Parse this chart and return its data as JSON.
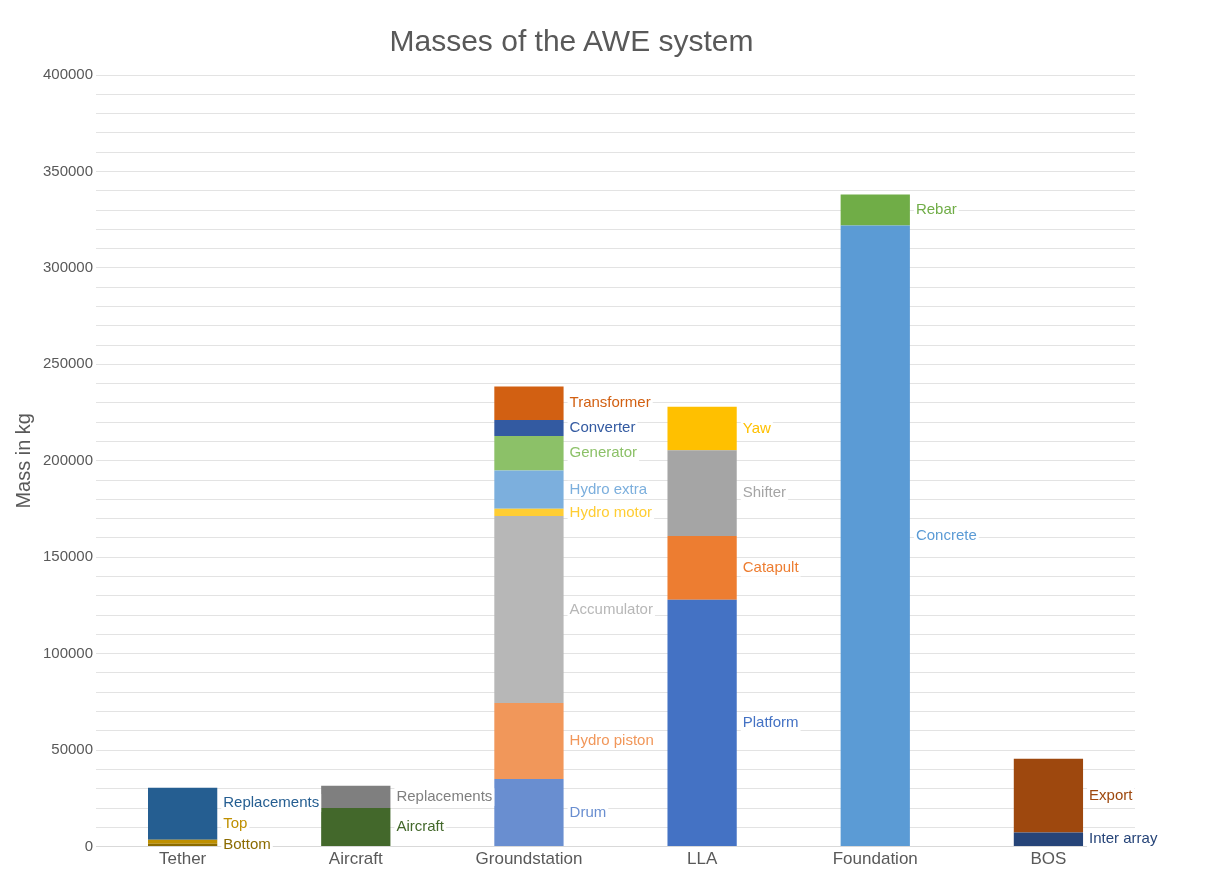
{
  "chart_data": {
    "type": "bar",
    "title": "Masses of the AWE system",
    "ylabel": "Mass in kg",
    "stacked": true,
    "legend": false,
    "grid": "y",
    "categories": [
      "Tether",
      "Aircraft",
      "Groundstation",
      "LLA",
      "Foundation",
      "BOS"
    ],
    "ylim": [
      0,
      400000
    ],
    "yticks": [
      0,
      {
        "value": 10000,
        "label": null
      },
      {
        "value": 20000,
        "label": null
      },
      {
        "value": 30000,
        "label": null
      },
      {
        "value": 40000,
        "label": null
      },
      50000,
      {
        "value": 60000,
        "label": null
      },
      {
        "value": 70000,
        "label": null
      },
      {
        "value": 80000,
        "label": null
      },
      {
        "value": 90000,
        "label": null
      },
      100000,
      {
        "value": 110000,
        "label": null
      },
      {
        "value": 120000,
        "label": null
      },
      {
        "value": 130000,
        "label": null
      },
      {
        "value": 140000,
        "label": null
      },
      150000,
      {
        "value": 160000,
        "label": null
      },
      {
        "value": 170000,
        "label": null
      },
      {
        "value": 180000,
        "label": null
      },
      {
        "value": 190000,
        "label": null
      },
      200000,
      {
        "value": 210000,
        "label": null
      },
      {
        "value": 220000,
        "label": null
      },
      {
        "value": 230000,
        "label": null
      },
      {
        "value": 240000,
        "label": null
      },
      250000,
      {
        "value": 260000,
        "label": null
      },
      {
        "value": 270000,
        "label": null
      },
      {
        "value": 280000,
        "label": null
      },
      {
        "value": 290000,
        "label": null
      },
      300000,
      {
        "value": 310000,
        "label": null
      },
      {
        "value": 320000,
        "label": null
      },
      {
        "value": 330000,
        "label": null
      },
      {
        "value": 340000,
        "label": null
      },
      350000,
      {
        "value": 360000,
        "label": null
      },
      {
        "value": 370000,
        "label": null
      },
      {
        "value": 380000,
        "label": null
      },
      {
        "value": 390000,
        "label": null
      },
      400000
    ],
    "series": [
      {
        "name": "Bottom",
        "color": "#8b6b00",
        "values": [
          1500,
          null,
          null,
          null,
          null,
          null
        ]
      },
      {
        "name": "Top",
        "color": "#bf9000",
        "values": [
          2000,
          null,
          null,
          null,
          null,
          null
        ]
      },
      {
        "name": "Replacements",
        "color": "#255e91",
        "values": [
          27000,
          null,
          null,
          null,
          null,
          null
        ]
      },
      {
        "name": "Aircraft",
        "color": "#43682b",
        "values": [
          null,
          20000,
          null,
          null,
          null,
          null
        ]
      },
      {
        "name": "Replacements",
        "color": "#7f7f7f",
        "values": [
          null,
          11500,
          null,
          null,
          null,
          null
        ]
      },
      {
        "name": "Drum",
        "color": "#698ed0",
        "values": [
          null,
          null,
          35000,
          null,
          null,
          null
        ]
      },
      {
        "name": "Hydro piston",
        "color": "#f1975a",
        "values": [
          null,
          null,
          39400,
          null,
          null,
          null
        ]
      },
      {
        "name": "Accumulator",
        "color": "#b7b7b7",
        "values": [
          null,
          null,
          97000,
          null,
          null,
          null
        ]
      },
      {
        "name": "Hydro motor",
        "color": "#ffcd33",
        "values": [
          null,
          null,
          3700,
          null,
          null,
          null
        ]
      },
      {
        "name": "Hydro extra",
        "color": "#7cafdd",
        "values": [
          null,
          null,
          19900,
          null,
          null,
          null
        ]
      },
      {
        "name": "Generator",
        "color": "#8cc168",
        "values": [
          null,
          null,
          17800,
          null,
          null,
          null
        ]
      },
      {
        "name": "Converter",
        "color": "#335aa1",
        "values": [
          null,
          null,
          8400,
          null,
          null,
          null
        ]
      },
      {
        "name": "Transformer",
        "color": "#d26012",
        "values": [
          null,
          null,
          17300,
          null,
          null,
          null
        ]
      },
      {
        "name": "Platform",
        "color": "#4472c4",
        "values": [
          null,
          null,
          null,
          128000,
          null,
          null
        ]
      },
      {
        "name": "Catapult",
        "color": "#ed7d31",
        "values": [
          null,
          null,
          null,
          33000,
          null,
          null
        ]
      },
      {
        "name": "Shifter",
        "color": "#a5a5a5",
        "values": [
          null,
          null,
          null,
          44500,
          null,
          null
        ]
      },
      {
        "name": "Yaw",
        "color": "#ffc000",
        "values": [
          null,
          null,
          null,
          22500,
          null,
          null
        ]
      },
      {
        "name": "Concrete",
        "color": "#5b9bd5",
        "values": [
          null,
          null,
          null,
          null,
          322000,
          null
        ]
      },
      {
        "name": "Rebar",
        "color": "#70ad47",
        "values": [
          null,
          null,
          null,
          null,
          16000,
          null
        ]
      },
      {
        "name": "Inter array",
        "color": "#264478",
        "values": [
          null,
          null,
          null,
          null,
          null,
          7300
        ]
      },
      {
        "name": "Export",
        "color": "#9e480e",
        "values": [
          null,
          null,
          null,
          null,
          null,
          38300
        ]
      }
    ]
  }
}
